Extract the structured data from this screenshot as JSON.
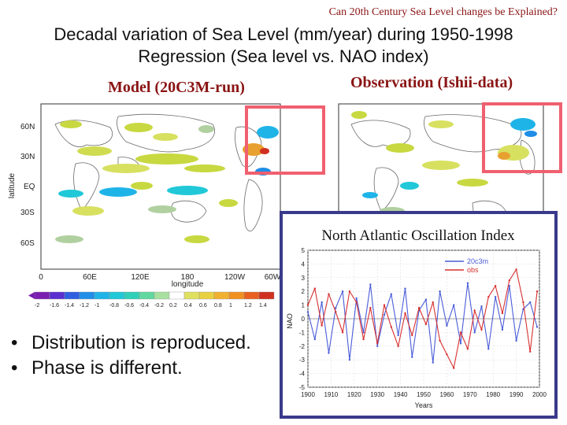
{
  "slide": {
    "top_note": "Can 20th Century Sea Level changes be Explained?",
    "title_line1": "Decadal variation of Sea Level (mm/year) during 1950-1998",
    "title_line2": "Regression (Sea level vs. NAO index)",
    "model_label": "Model (20C3M-run)",
    "obs_label": "Observation (Ishii-data)",
    "bullets": [
      "Distribution is reproduced.",
      "Phase is different."
    ]
  },
  "map": {
    "y_title": "latitude",
    "x_title": "longitude",
    "lat_ticks": [
      "60N",
      "30N",
      "EQ",
      "30S",
      "60S"
    ],
    "lon_ticks": [
      "0",
      "60E",
      "120E",
      "180",
      "120W",
      "60W"
    ],
    "colorbar_labels": [
      "-2",
      "-1.6",
      "-1.4",
      "-1.2",
      "-1",
      "-0.8",
      "-0.6",
      "-0.4",
      "-0.2",
      "0.2",
      "0.4",
      "0.6",
      "0.8",
      "1",
      "1.2",
      "1.4"
    ],
    "colorbar_colors": [
      "#7a1fb0",
      "#5a2fd0",
      "#2f5fe0",
      "#1f8ee8",
      "#1fb4e8",
      "#20c8d8",
      "#30d0b8",
      "#60d8a0",
      "#a8e0a0",
      "#ffffff",
      "#e0e060",
      "#e8d040",
      "#f0b030",
      "#f09020",
      "#e86020",
      "#d03020"
    ]
  },
  "nao": {
    "title": "North Atlantic Oscillation Index",
    "ylabel": "NAO",
    "xlabel": "Years",
    "legend": [
      {
        "name": "20c3m",
        "color": "#4a5cd8"
      },
      {
        "name": "obs",
        "color": "#d83030"
      }
    ]
  },
  "chart_data": {
    "type": "line",
    "title": "North Atlantic Oscillation Index",
    "xlabel": "Years",
    "ylabel": "NAO",
    "xlim": [
      1900,
      2000
    ],
    "ylim": [
      -5,
      5
    ],
    "x_ticks": [
      1900,
      1910,
      1920,
      1930,
      1940,
      1950,
      1960,
      1970,
      1980,
      1990,
      2000
    ],
    "y_ticks": [
      -5,
      -4,
      -3,
      -2,
      -1,
      0,
      1,
      2,
      3,
      4,
      5
    ],
    "series": [
      {
        "name": "20c3m",
        "color": "#4a5cd8",
        "x": [
          1900,
          1903,
          1906,
          1909,
          1912,
          1915,
          1918,
          1921,
          1924,
          1927,
          1930,
          1933,
          1936,
          1939,
          1942,
          1945,
          1948,
          1951,
          1954,
          1957,
          1960,
          1963,
          1966,
          1969,
          1972,
          1975,
          1978,
          1981,
          1984,
          1987,
          1990,
          1993,
          1996,
          1999
        ],
        "values": [
          0.5,
          -1.5,
          1.2,
          -2.5,
          0.8,
          2.0,
          -3.0,
          1.5,
          -1.0,
          2.5,
          -2.0,
          0.3,
          1.8,
          -1.2,
          2.2,
          -2.8,
          0.6,
          1.4,
          -3.2,
          2.0,
          -0.5,
          1.0,
          -1.8,
          2.6,
          -1.0,
          0.9,
          -2.2,
          1.6,
          -0.8,
          2.4,
          -1.6,
          0.7,
          1.2,
          -0.6
        ]
      },
      {
        "name": "obs",
        "color": "#d83030",
        "x": [
          1900,
          1903,
          1906,
          1909,
          1912,
          1915,
          1918,
          1921,
          1924,
          1927,
          1930,
          1933,
          1936,
          1939,
          1942,
          1945,
          1948,
          1951,
          1954,
          1957,
          1960,
          1963,
          1966,
          1969,
          1972,
          1975,
          1978,
          1981,
          1984,
          1987,
          1990,
          1993,
          1996,
          1999
        ],
        "values": [
          1.0,
          2.2,
          -0.5,
          1.8,
          0.5,
          -1.0,
          2.0,
          1.2,
          -1.5,
          0.8,
          -1.8,
          1.0,
          -0.6,
          -2.0,
          0.4,
          -1.2,
          0.8,
          -0.4,
          1.2,
          -1.6,
          -2.6,
          -3.6,
          -1.0,
          -2.2,
          0.6,
          -0.8,
          1.6,
          2.4,
          0.4,
          2.8,
          3.6,
          1.2,
          -2.4,
          2.0
        ]
      }
    ]
  }
}
